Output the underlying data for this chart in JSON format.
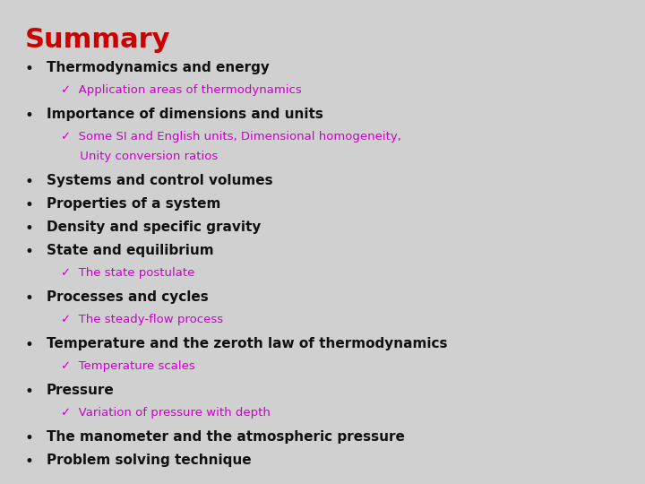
{
  "title": "Summary",
  "title_color": "#cc0000",
  "title_fontsize": 22,
  "background_color": "#d0d0d0",
  "bullet_color": "#111111",
  "bullet_fontsize": 11,
  "sub_color": "#cc00cc",
  "sub_fontsize": 9.5,
  "items": [
    {
      "type": "bullet",
      "text": "Thermodynamics and energy"
    },
    {
      "type": "sub",
      "text": "✓  Application areas of thermodynamics"
    },
    {
      "type": "gap_small"
    },
    {
      "type": "bullet",
      "text": "Importance of dimensions and units"
    },
    {
      "type": "sub",
      "text": "✓  Some SI and English units, Dimensional homogeneity,"
    },
    {
      "type": "sub_cont",
      "text": "     Unity conversion ratios"
    },
    {
      "type": "gap_small"
    },
    {
      "type": "bullet",
      "text": "Systems and control volumes"
    },
    {
      "type": "bullet",
      "text": "Properties of a system"
    },
    {
      "type": "bullet",
      "text": "Density and specific gravity"
    },
    {
      "type": "bullet",
      "text": "State and equilibrium"
    },
    {
      "type": "sub",
      "text": "✓  The state postulate"
    },
    {
      "type": "gap_small"
    },
    {
      "type": "bullet",
      "text": "Processes and cycles"
    },
    {
      "type": "sub",
      "text": "✓  The steady-flow process"
    },
    {
      "type": "gap_small"
    },
    {
      "type": "bullet",
      "text": "Temperature and the zeroth law of thermodynamics"
    },
    {
      "type": "sub",
      "text": "✓  Temperature scales"
    },
    {
      "type": "gap_small"
    },
    {
      "type": "bullet",
      "text": "Pressure"
    },
    {
      "type": "sub",
      "text": "✓  Variation of pressure with depth"
    },
    {
      "type": "gap_small"
    },
    {
      "type": "bullet",
      "text": "The manometer and the atmospheric pressure"
    },
    {
      "type": "bullet",
      "text": "Problem solving technique"
    }
  ]
}
